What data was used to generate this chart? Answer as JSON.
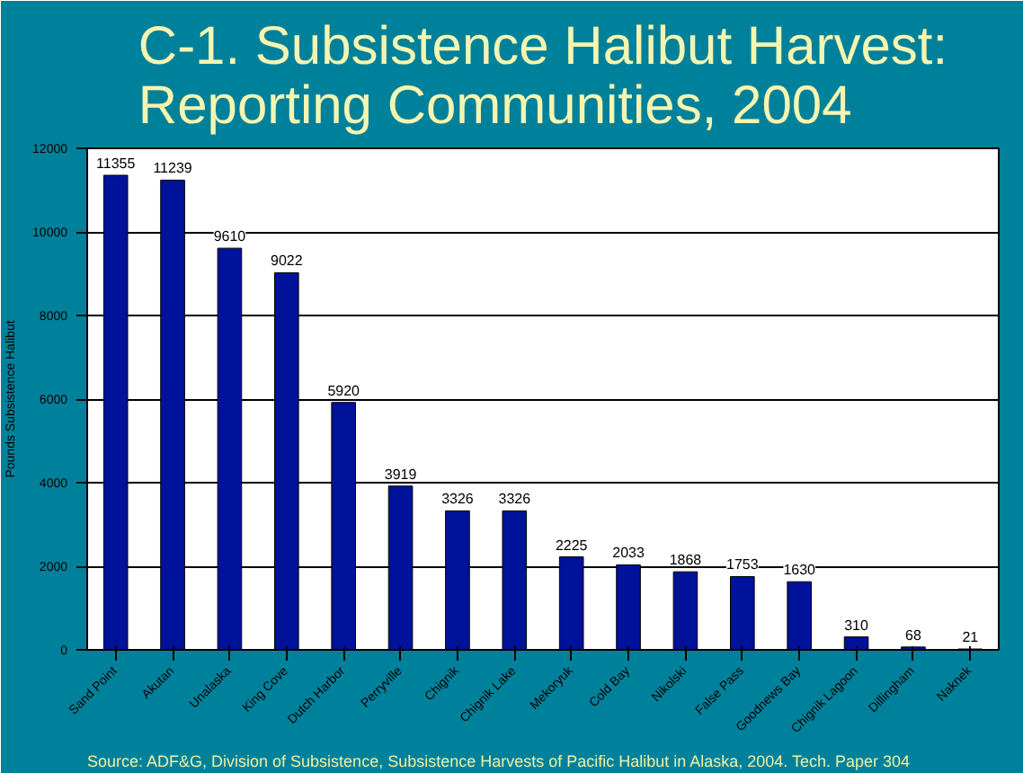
{
  "chart_data": {
    "type": "bar",
    "title": "C-1. Subsistence Halibut Harvest:\nReporting Communities, 2004",
    "ylabel": "Pounds Subsistence Halibut",
    "categories": [
      "Sand Point",
      "Akutan",
      "Unalaska",
      "King Cove",
      "Dutch Harbor",
      "Perryville",
      "Chignik",
      "Chignik Lake",
      "Mekoryuk",
      "Cold Bay",
      "Nikolski",
      "False Pass",
      "Goodnews Bay",
      "Chignik Lagoon",
      "Dillingham",
      "Naknek"
    ],
    "values": [
      11355,
      11239,
      9610,
      9022,
      5920,
      3919,
      3326,
      3326,
      2225,
      2033,
      1868,
      1753,
      1630,
      310,
      68,
      21
    ],
    "color": "#00129a",
    "ylim": [
      0,
      12000
    ],
    "yticks": [
      0,
      2000,
      4000,
      6000,
      8000,
      10000,
      12000
    ],
    "grid": "y",
    "data_labels": true,
    "annotations": [
      "Source:  ADF&G, Division of Subsistence, Subsistence Harvests of Pacific Halibut in Alaska, 2004.  Tech. Paper 304"
    ]
  }
}
